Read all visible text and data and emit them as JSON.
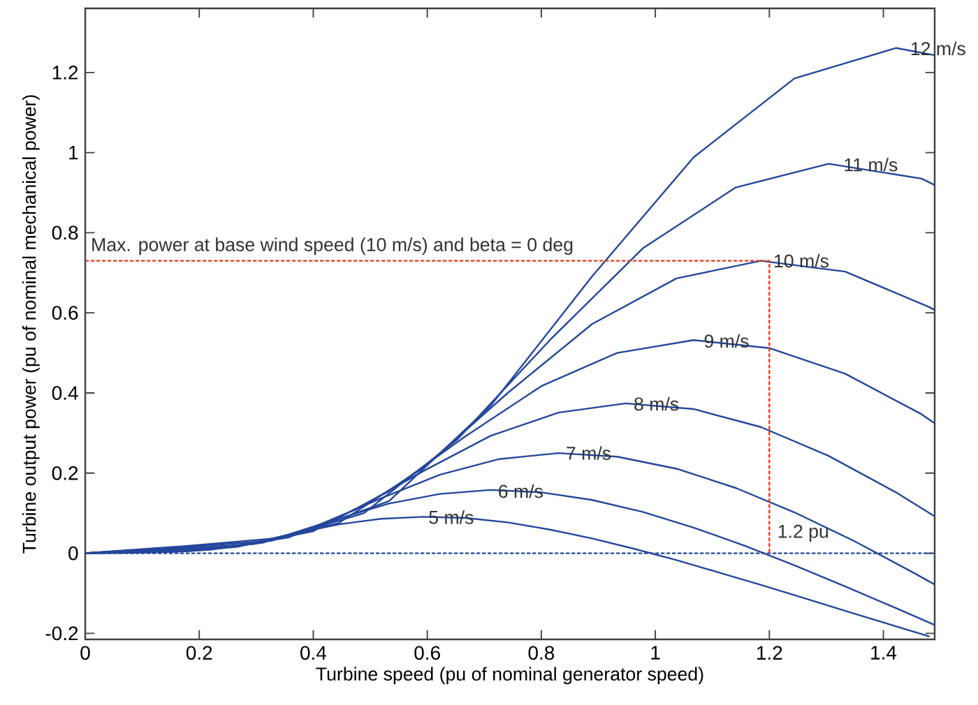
{
  "chart_data": {
    "type": "line",
    "xlabel": "Turbine speed (pu of nominal generator speed)",
    "ylabel": "Turbine output power (pu of nominal mechanical power)",
    "xlim": [
      0,
      1.49
    ],
    "ylim": [
      -0.215,
      1.36
    ],
    "xticks": [
      0,
      0.2,
      0.4,
      0.6,
      0.8,
      1,
      1.2,
      1.4
    ],
    "yticks": [
      -0.2,
      0,
      0.2,
      0.4,
      0.6,
      0.8,
      1,
      1.2
    ],
    "series": [
      {
        "color": "#23479b",
        "x": [
          0,
          0.074,
          0.148,
          0.222,
          0.296,
          0.37,
          0.444,
          0.519,
          0.593,
          0.667,
          0.741,
          0.815,
          0.889,
          0.963,
          1.037,
          1.111,
          1.185,
          1.259,
          1.333,
          1.407,
          1.481
        ],
        "values": [
          0,
          0.001,
          0.003,
          0.009,
          0.027,
          0.05,
          0.072,
          0.086,
          0.091,
          0.088,
          0.077,
          0.059,
          0.037,
          0.011,
          -0.017,
          -0.048,
          -0.079,
          -0.111,
          -0.144,
          -0.176,
          -0.208
        ]
      },
      {
        "color": "#23479b",
        "x": [
          0,
          0.089,
          0.178,
          0.267,
          0.356,
          0.444,
          0.533,
          0.622,
          0.711,
          0.8,
          0.889,
          0.978,
          1.067,
          1.156,
          1.244,
          1.333,
          1.422,
          1.49
        ],
        "values": [
          0,
          0.002,
          0.005,
          0.016,
          0.046,
          0.086,
          0.124,
          0.148,
          0.158,
          0.152,
          0.133,
          0.103,
          0.064,
          0.019,
          -0.03,
          -0.083,
          -0.137,
          -0.179
        ]
      },
      {
        "color": "#23479b",
        "x": [
          0,
          0.104,
          0.207,
          0.311,
          0.415,
          0.519,
          0.622,
          0.726,
          0.83,
          0.933,
          1.037,
          1.141,
          1.244,
          1.348,
          1.452,
          1.49
        ],
        "values": [
          0,
          0.004,
          0.008,
          0.026,
          0.073,
          0.137,
          0.196,
          0.235,
          0.25,
          0.241,
          0.211,
          0.163,
          0.102,
          0.031,
          -0.048,
          -0.078
        ]
      },
      {
        "color": "#23479b",
        "x": [
          0,
          0.119,
          0.237,
          0.356,
          0.474,
          0.593,
          0.711,
          0.83,
          0.948,
          1.067,
          1.185,
          1.304,
          1.422,
          1.49
        ],
        "values": [
          0,
          0.005,
          0.012,
          0.039,
          0.109,
          0.205,
          0.293,
          0.351,
          0.374,
          0.36,
          0.315,
          0.243,
          0.152,
          0.092
        ]
      },
      {
        "color": "#23479b",
        "x": [
          0,
          0.133,
          0.267,
          0.4,
          0.533,
          0.667,
          0.8,
          0.933,
          1.067,
          1.2,
          1.333,
          1.467,
          1.49
        ],
        "values": [
          0,
          0.008,
          0.017,
          0.055,
          0.155,
          0.292,
          0.417,
          0.5,
          0.532,
          0.512,
          0.448,
          0.347,
          0.324
        ]
      },
      {
        "color": "#23479b",
        "x": [
          0,
          0.148,
          0.296,
          0.444,
          0.593,
          0.741,
          0.889,
          1.037,
          1.185,
          1.333,
          1.481,
          1.49
        ],
        "values": [
          0,
          0.01,
          0.023,
          0.075,
          0.213,
          0.4,
          0.572,
          0.686,
          0.73,
          0.703,
          0.614,
          0.607
        ]
      },
      {
        "color": "#23479b",
        "x": [
          0,
          0.163,
          0.326,
          0.489,
          0.652,
          0.815,
          0.978,
          1.141,
          1.304,
          1.467,
          1.49
        ],
        "values": [
          0,
          0.014,
          0.031,
          0.1,
          0.283,
          0.532,
          0.761,
          0.913,
          0.972,
          0.935,
          0.919
        ]
      },
      {
        "color": "#23479b",
        "x": [
          0,
          0.178,
          0.356,
          0.533,
          0.711,
          0.889,
          1.067,
          1.244,
          1.422,
          1.49
        ],
        "values": [
          0,
          0.018,
          0.04,
          0.13,
          0.368,
          0.691,
          0.988,
          1.185,
          1.261,
          1.243
        ]
      },
      {
        "color": "#e03a1e",
        "line_style": "dashed",
        "x": [
          0,
          1.2,
          1.2
        ],
        "values": [
          0.73,
          0.73,
          0
        ]
      }
    ],
    "ref_lines": [
      {
        "axis": "y",
        "value": 0,
        "color": "#23479b",
        "line_style": "dashed"
      }
    ],
    "annotations": [
      {
        "text": "12 m/s",
        "x": 1.443,
        "y": 1.26
      },
      {
        "text": "11 m/s",
        "x": 1.326,
        "y": 0.97
      },
      {
        "text": "10 m/s",
        "x": 1.203,
        "y": 0.73
      },
      {
        "text": "9 m/s",
        "x": 1.081,
        "y": 0.53
      },
      {
        "text": "8 m/s",
        "x": 0.958,
        "y": 0.373
      },
      {
        "text": "7 m/s",
        "x": 0.839,
        "y": 0.25
      },
      {
        "text": "6 m/s",
        "x": 0.72,
        "y": 0.155
      },
      {
        "text": "5 m/s",
        "x": 0.598,
        "y": 0.09
      },
      {
        "text": "1.2 pu",
        "x": 1.21,
        "y": 0.05
      },
      "Max. power at base wind speed (10 m/s) and beta = 0 deg"
    ]
  }
}
